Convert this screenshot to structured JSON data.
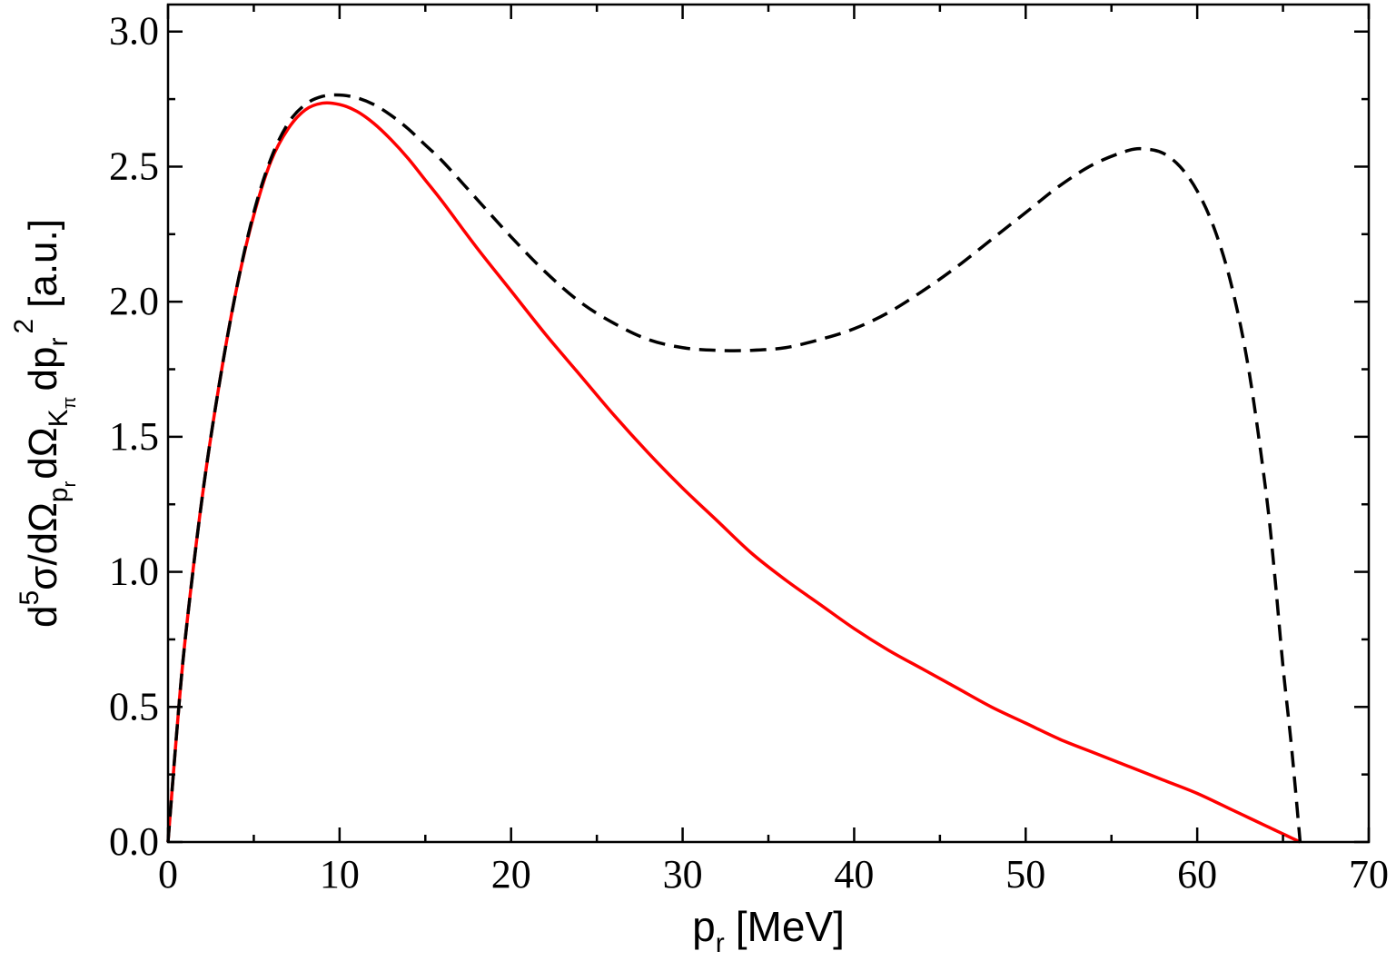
{
  "colors": {
    "solid_series": "#ff0000",
    "dashed_series": "#000000",
    "axes": "#000000",
    "background": "#ffffff"
  },
  "chart_data": {
    "type": "line",
    "title": "",
    "xlabel": {
      "base": "p",
      "sub": "r",
      "unit": "[MeV]"
    },
    "ylabel": {
      "d": "d",
      "d_sup": "5",
      "mid": "σ/dΩ",
      "sub1": "p",
      "sub1_sub": "r",
      "mid2": "dΩ",
      "sub2": "K",
      "sub2_sub": "π",
      "tail": "dp",
      "tail_sub": "r",
      "tail_sup": "2",
      "unit": "[a.u.]"
    },
    "xlim": [
      0,
      70
    ],
    "ylim": [
      0,
      3.1
    ],
    "x_ticks": [
      "0",
      "10",
      "20",
      "30",
      "40",
      "50",
      "60",
      "70"
    ],
    "x_tick_values": [
      0,
      10,
      20,
      30,
      40,
      50,
      60,
      70
    ],
    "y_ticks": [
      "0.0",
      "0.5",
      "1.0",
      "1.5",
      "2.0",
      "2.5",
      "3.0"
    ],
    "y_tick_values": [
      0,
      0.5,
      1.0,
      1.5,
      2.0,
      2.5,
      3.0
    ],
    "x_minor_step": 5,
    "y_minor_step": 0.25,
    "grid": false,
    "legend": "none",
    "series": [
      {
        "style": "solid",
        "color": "#ff0000",
        "x": [
          0,
          0.5,
          1,
          2,
          3,
          4,
          5,
          6,
          7,
          8,
          9,
          10,
          11,
          12,
          13,
          14,
          15,
          16,
          18,
          20,
          22,
          24,
          26,
          28,
          30,
          32,
          34,
          36,
          38,
          40,
          42,
          44,
          46,
          48,
          50,
          52,
          54,
          56,
          58,
          60,
          62,
          63,
          64,
          64.5,
          65,
          65.5,
          66
        ],
        "y": [
          0,
          0.4,
          0.75,
          1.28,
          1.7,
          2.05,
          2.32,
          2.52,
          2.64,
          2.71,
          2.735,
          2.73,
          2.705,
          2.66,
          2.6,
          2.53,
          2.45,
          2.37,
          2.2,
          2.04,
          1.88,
          1.73,
          1.58,
          1.44,
          1.31,
          1.19,
          1.07,
          0.97,
          0.88,
          0.79,
          0.71,
          0.64,
          0.57,
          0.5,
          0.44,
          0.38,
          0.33,
          0.28,
          0.23,
          0.18,
          0.12,
          0.09,
          0.06,
          0.045,
          0.03,
          0.015,
          0
        ]
      },
      {
        "style": "dashed",
        "color": "#000000",
        "x": [
          0,
          0.5,
          1,
          2,
          3,
          4,
          5,
          6,
          7,
          8,
          9,
          10,
          11,
          12,
          13,
          14,
          15,
          16,
          18,
          20,
          22,
          24,
          26,
          28,
          30,
          32,
          34,
          36,
          38,
          40,
          42,
          44,
          46,
          48,
          50,
          52,
          54,
          56,
          57,
          58,
          59,
          60,
          61,
          62,
          63,
          64,
          64.5,
          65,
          65.5,
          66
        ],
        "y": [
          0,
          0.4,
          0.75,
          1.28,
          1.7,
          2.05,
          2.33,
          2.53,
          2.66,
          2.73,
          2.76,
          2.765,
          2.755,
          2.73,
          2.69,
          2.64,
          2.58,
          2.52,
          2.38,
          2.24,
          2.11,
          2.0,
          1.92,
          1.86,
          1.83,
          1.82,
          1.82,
          1.83,
          1.86,
          1.9,
          1.96,
          2.04,
          2.13,
          2.23,
          2.33,
          2.43,
          2.51,
          2.56,
          2.565,
          2.55,
          2.5,
          2.41,
          2.27,
          2.06,
          1.75,
          1.3,
          1.0,
          0.65,
          0.35,
          0
        ]
      }
    ]
  }
}
